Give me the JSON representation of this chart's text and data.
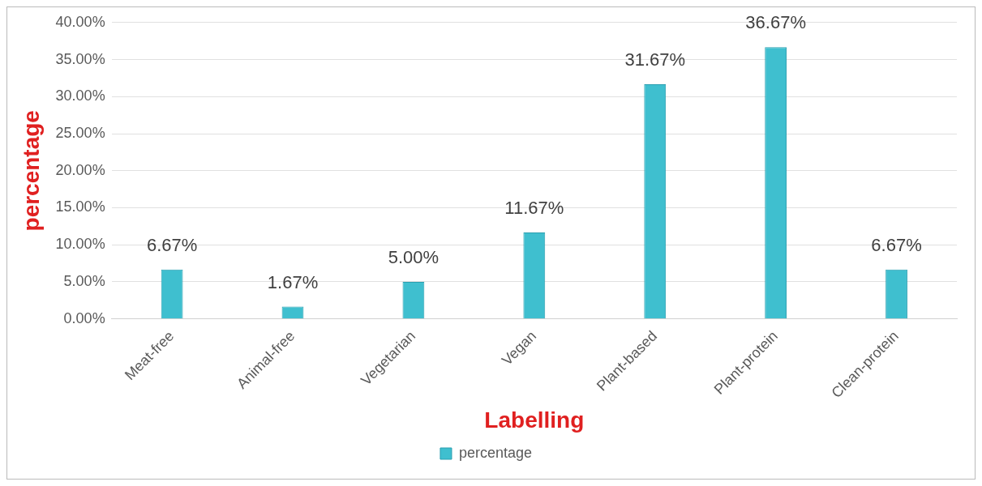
{
  "chart_data": {
    "type": "bar",
    "xlabel": "Labelling",
    "ylabel": "percentage",
    "categories": [
      "Meat-free",
      "Animal-free",
      "Vegetarian",
      "Vegan",
      "Plant-based",
      "Plant-protein",
      "Clean-protein"
    ],
    "series": [
      {
        "name": "percentage",
        "color": "#3fbfcf",
        "values": [
          6.67,
          1.67,
          5.0,
          11.67,
          31.67,
          36.67,
          6.67
        ],
        "value_labels": [
          "6.67%",
          "1.67%",
          "5.00%",
          "11.67%",
          "31.67%",
          "36.67%",
          "6.67%"
        ]
      }
    ],
    "ylim": [
      0,
      40
    ],
    "yticks": [
      {
        "value": 0,
        "label": "0.00%"
      },
      {
        "value": 5,
        "label": "5.00%"
      },
      {
        "value": 10,
        "label": "10.00%"
      },
      {
        "value": 15,
        "label": "15.00%"
      },
      {
        "value": 20,
        "label": "20.00%"
      },
      {
        "value": 25,
        "label": "25.00%"
      },
      {
        "value": 30,
        "label": "30.00%"
      },
      {
        "value": 35,
        "label": "35.00%"
      },
      {
        "value": 40,
        "label": "40.00%"
      }
    ],
    "grid": "y",
    "legend": "bottom"
  }
}
